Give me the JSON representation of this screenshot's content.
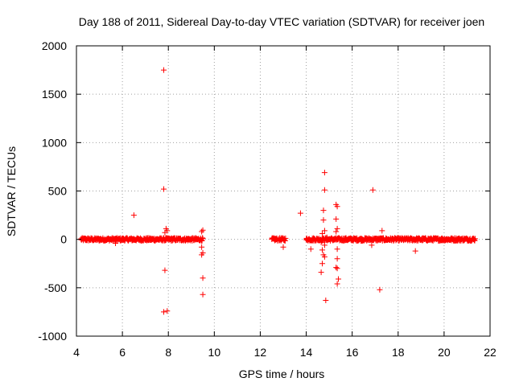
{
  "chart_data": {
    "type": "scatter",
    "title": "Day 188 of 2011, Sidereal Day-to-day VTEC variation (SDTVAR) for receiver joen",
    "xlabel": "GPS time / hours",
    "ylabel": "SDTVAR / TECUs",
    "xlim": [
      4,
      22
    ],
    "ylim": [
      -1000,
      2000
    ],
    "xticks": [
      4,
      6,
      8,
      10,
      12,
      14,
      16,
      18,
      20,
      22
    ],
    "yticks": [
      -1000,
      -500,
      0,
      500,
      1000,
      1500,
      2000
    ],
    "grid": true,
    "marker": "+",
    "color": "#ff0000",
    "dense_segments": [
      {
        "x_start": 4.2,
        "x_end": 9.5,
        "y_min": -15,
        "y_max": 15
      },
      {
        "x_start": 12.5,
        "x_end": 12.75,
        "y_min": -15,
        "y_max": 15
      },
      {
        "x_start": 12.8,
        "x_end": 13.1,
        "y_min": -15,
        "y_max": 15
      },
      {
        "x_start": 14.0,
        "x_end": 21.35,
        "y_min": -15,
        "y_max": 15
      }
    ],
    "outliers": [
      {
        "x": 7.8,
        "y": 1750
      },
      {
        "x": 7.8,
        "y": 520
      },
      {
        "x": 6.5,
        "y": 250
      },
      {
        "x": 7.9,
        "y": 110
      },
      {
        "x": 7.95,
        "y": 90
      },
      {
        "x": 7.85,
        "y": 70
      },
      {
        "x": 5.7,
        "y": -40
      },
      {
        "x": 7.85,
        "y": -320
      },
      {
        "x": 7.8,
        "y": -750
      },
      {
        "x": 7.95,
        "y": -740
      },
      {
        "x": 9.5,
        "y": 95
      },
      {
        "x": 9.45,
        "y": 80
      },
      {
        "x": 9.45,
        "y": -80
      },
      {
        "x": 9.5,
        "y": -140
      },
      {
        "x": 9.45,
        "y": -160
      },
      {
        "x": 9.5,
        "y": -400
      },
      {
        "x": 9.5,
        "y": -570
      },
      {
        "x": 13.0,
        "y": -80
      },
      {
        "x": 13.75,
        "y": 270
      },
      {
        "x": 14.2,
        "y": -100
      },
      {
        "x": 14.8,
        "y": 690
      },
      {
        "x": 14.8,
        "y": 510
      },
      {
        "x": 14.75,
        "y": 300
      },
      {
        "x": 14.75,
        "y": 200
      },
      {
        "x": 14.8,
        "y": 90
      },
      {
        "x": 14.7,
        "y": 60
      },
      {
        "x": 14.65,
        "y": -30
      },
      {
        "x": 14.8,
        "y": -60
      },
      {
        "x": 14.7,
        "y": -110
      },
      {
        "x": 14.75,
        "y": -160
      },
      {
        "x": 14.8,
        "y": -180
      },
      {
        "x": 14.7,
        "y": -250
      },
      {
        "x": 14.65,
        "y": -340
      },
      {
        "x": 14.85,
        "y": -630
      },
      {
        "x": 14.9,
        "y": 20
      },
      {
        "x": 15.3,
        "y": 360
      },
      {
        "x": 15.35,
        "y": 340
      },
      {
        "x": 15.3,
        "y": 210
      },
      {
        "x": 15.35,
        "y": 110
      },
      {
        "x": 15.3,
        "y": 80
      },
      {
        "x": 15.35,
        "y": -100
      },
      {
        "x": 15.35,
        "y": -200
      },
      {
        "x": 15.3,
        "y": -290
      },
      {
        "x": 15.35,
        "y": -300
      },
      {
        "x": 15.4,
        "y": -410
      },
      {
        "x": 15.35,
        "y": -460
      },
      {
        "x": 16.9,
        "y": 510
      },
      {
        "x": 16.85,
        "y": -60
      },
      {
        "x": 17.2,
        "y": -520
      },
      {
        "x": 17.3,
        "y": 90
      },
      {
        "x": 18.75,
        "y": -120
      }
    ]
  }
}
